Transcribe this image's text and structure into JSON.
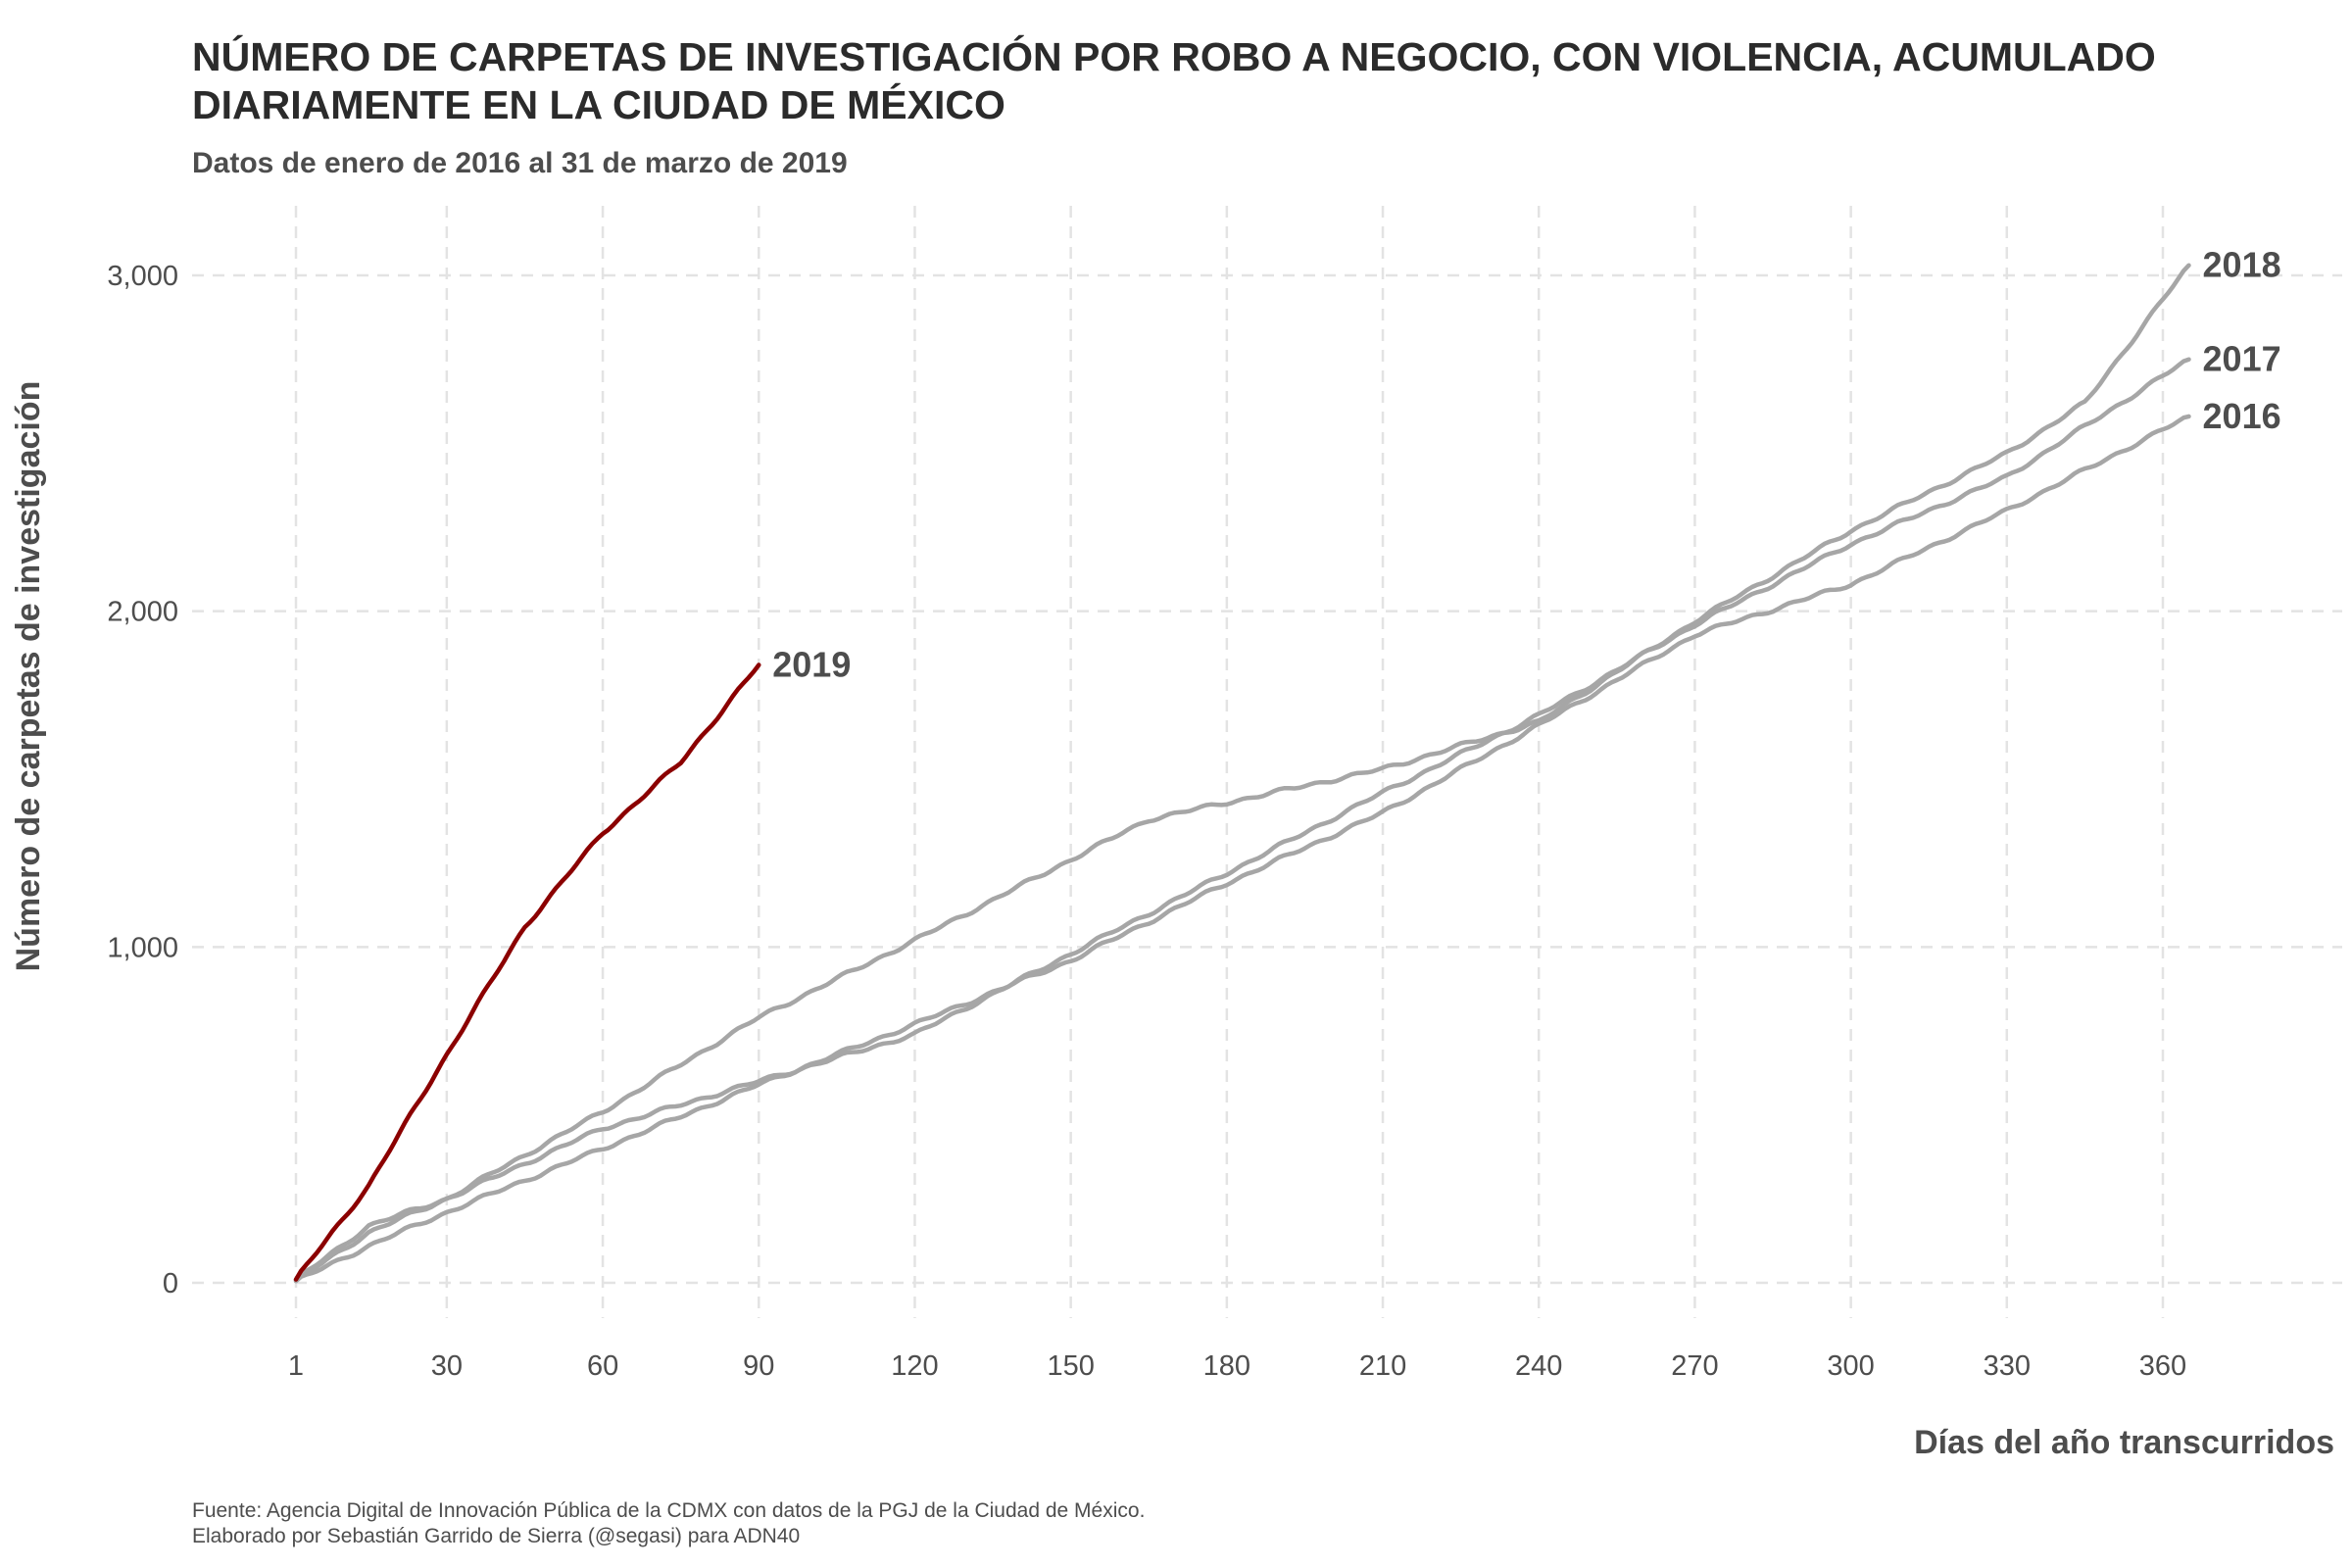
{
  "title_line1": "NÚMERO DE CARPETAS DE INVESTIGACIÓN POR ROBO A NEGOCIO, CON VIOLENCIA, ACUMULADO",
  "title_line2": "DIARIAMENTE EN LA CIUDAD DE MÉXICO",
  "subtitle": "Datos de enero de 2016 al 31 de marzo de 2019",
  "caption_line1": "Fuente: Agencia Digital de Innovación Pública de la CDMX con datos de la PGJ de la Ciudad de México.",
  "caption_line2": "Elaborado por Sebastián Garrido de Sierra (@segasi) para ADN40",
  "colors": {
    "highlight": "#8b0000",
    "other": "#a6a6a6",
    "grid": "#e3e3e3",
    "label": "#4d4d4d"
  },
  "chart_data": {
    "type": "line",
    "title": "NÚMERO DE CARPETAS DE INVESTIGACIÓN POR ROBO A NEGOCIO, CON VIOLENCIA, ACUMULADO DIARIAMENTE EN LA CIUDAD DE MÉXICO",
    "subtitle": "Datos de enero de 2016 al 31 de marzo de 2019",
    "xlabel": "Días del año transcurridos",
    "ylabel": "Número de carpetas de investigación",
    "xlim": [
      1,
      365
    ],
    "ylim": [
      0,
      3000
    ],
    "x_ticks": [
      1,
      30,
      60,
      90,
      120,
      150,
      180,
      210,
      240,
      270,
      300,
      330,
      360
    ],
    "y_ticks": [
      0,
      1000,
      2000,
      3000
    ],
    "y_tick_labels": [
      "0",
      "1,000",
      "2,000",
      "3,000"
    ],
    "grid": "dashed major gridlines on both axes",
    "legend": "none; series labelled directly at line ends",
    "series": [
      {
        "name": "2016",
        "highlight": false,
        "x": [
          1,
          15,
          30,
          60,
          90,
          120,
          150,
          180,
          210,
          240,
          270,
          300,
          330,
          365
        ],
        "y": [
          5,
          110,
          210,
          400,
          590,
          770,
          960,
          1190,
          1400,
          1660,
          1930,
          2080,
          2300,
          2580
        ]
      },
      {
        "name": "2017",
        "highlight": false,
        "x": [
          1,
          15,
          30,
          60,
          90,
          120,
          150,
          180,
          210,
          240,
          270,
          300,
          330,
          365
        ],
        "y": [
          8,
          150,
          250,
          460,
          600,
          740,
          980,
          1220,
          1460,
          1690,
          1960,
          2200,
          2400,
          2750
        ]
      },
      {
        "name": "2018",
        "highlight": false,
        "x": [
          1,
          15,
          30,
          60,
          90,
          120,
          150,
          165,
          180,
          210,
          240,
          270,
          300,
          330,
          345,
          365
        ],
        "y": [
          8,
          170,
          250,
          510,
          790,
          1020,
          1260,
          1380,
          1430,
          1530,
          1670,
          1970,
          2240,
          2470,
          2620,
          3030
        ]
      },
      {
        "name": "2019",
        "highlight": true,
        "x": [
          1,
          15,
          30,
          45,
          60,
          75,
          90
        ],
        "y": [
          10,
          290,
          680,
          1060,
          1340,
          1550,
          1840
        ]
      }
    ]
  }
}
